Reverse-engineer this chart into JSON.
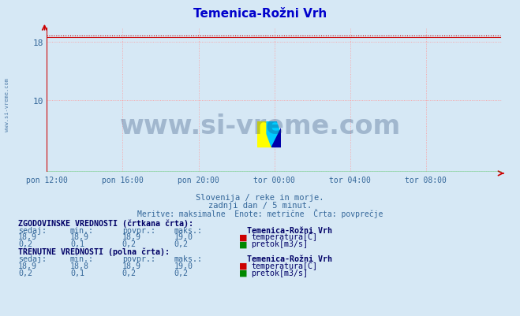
{
  "title": "Temenica-Rožni Vrh",
  "title_color": "#0000cc",
  "bg_color": "#d6e8f5",
  "plot_bg_color": "#d6e8f5",
  "grid_color": "#ff9999",
  "x_axis_color": "#00bb00",
  "tick_color": "#336699",
  "x_labels": [
    "pon 12:00",
    "pon 16:00",
    "pon 20:00",
    "tor 00:00",
    "tor 04:00",
    "tor 08:00"
  ],
  "x_ticks": [
    0,
    48,
    96,
    144,
    192,
    240
  ],
  "x_max": 288,
  "y_min": 0,
  "y_max": 20,
  "y_ticks": [
    10,
    18
  ],
  "temp_color": "#cc0000",
  "flow_color": "#008800",
  "watermark_text": "www.si-vreme.com",
  "watermark_color": "#1a3a6b",
  "subtitle1": "Slovenija / reke in morje.",
  "subtitle2": "zadnji dan / 5 minut.",
  "subtitle3": "Meritve: maksimalne  Enote: metrične  Črta: povprečje",
  "subtitle_color": "#336699",
  "left_label": "www.si-vreme.com",
  "table_header_color": "#000066",
  "table_label_color": "#336699",
  "hist_sedaj": "18,9",
  "hist_min": "18,9",
  "hist_povpr": "18,9",
  "hist_maks": "19,0",
  "hist_flow_sedaj": "0,2",
  "hist_flow_min": "0,1",
  "hist_flow_povpr": "0,2",
  "hist_flow_maks": "0,2",
  "curr_sedaj": "18,9",
  "curr_min": "18,8",
  "curr_povpr": "18,9",
  "curr_maks": "19,0",
  "curr_flow_sedaj": "0,2",
  "curr_flow_min": "0,1",
  "curr_flow_povpr": "0,2",
  "curr_flow_maks": "0,2",
  "station_name": "Temenica-Rožni Vrh"
}
